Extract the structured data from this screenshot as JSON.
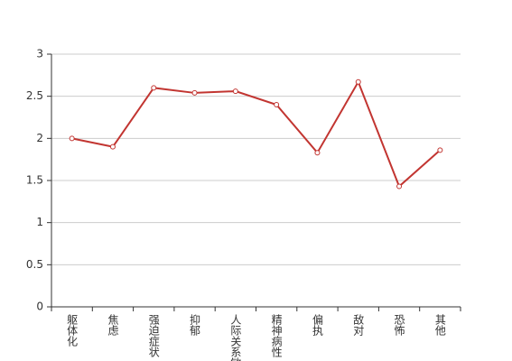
{
  "chart_data": {
    "type": "line",
    "categories": [
      "躯体化",
      "焦虑",
      "强迫症状",
      "抑郁",
      "人际关系敏感",
      "精神病性",
      "偏执",
      "敌对",
      "恐怖",
      "其他"
    ],
    "series": [
      {
        "color": "#c23531",
        "values": [
          2.0,
          1.9,
          2.6,
          2.54,
          2.56,
          2.4,
          1.83,
          2.67,
          1.43,
          1.86
        ]
      }
    ],
    "ylim": [
      0,
      3
    ],
    "yticks": [
      0,
      0.5,
      1,
      1.5,
      2,
      2.5,
      3
    ],
    "grid": true
  }
}
